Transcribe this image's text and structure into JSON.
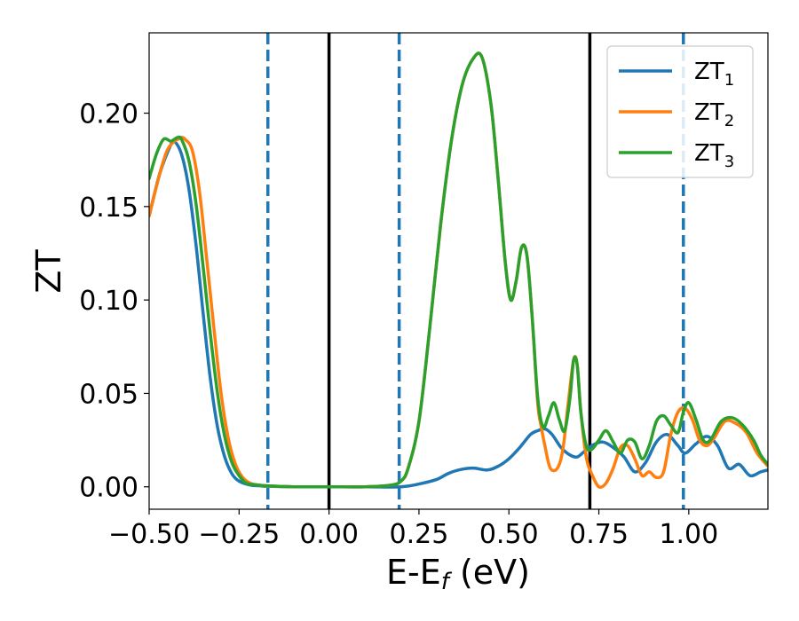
{
  "chart_data": {
    "type": "line",
    "xlabel": "E-E",
    "xlabel_sub": "f",
    "xlabel_unit": " (eV)",
    "ylabel": "ZT",
    "xlim": [
      -0.5,
      1.22
    ],
    "ylim": [
      -0.012,
      0.243
    ],
    "grid": false,
    "legend": {
      "position": "top-right",
      "entries": [
        {
          "label": "ZT",
          "sub": "1",
          "color": "#1f77b4"
        },
        {
          "label": "ZT",
          "sub": "2",
          "color": "#ff7f0e"
        },
        {
          "label": "ZT",
          "sub": "3",
          "color": "#2ca02c"
        }
      ]
    },
    "xticks": [
      {
        "value": -0.5,
        "label": "−0.50"
      },
      {
        "value": -0.25,
        "label": "−0.25"
      },
      {
        "value": 0.0,
        "label": "0.00"
      },
      {
        "value": 0.25,
        "label": "0.25"
      },
      {
        "value": 0.5,
        "label": "0.50"
      },
      {
        "value": 0.75,
        "label": "0.75"
      },
      {
        "value": 1.0,
        "label": "1.00"
      }
    ],
    "yticks": [
      {
        "value": 0.0,
        "label": "0.00"
      },
      {
        "value": 0.05,
        "label": "0.05"
      },
      {
        "value": 0.1,
        "label": "0.10"
      },
      {
        "value": 0.15,
        "label": "0.15"
      },
      {
        "value": 0.2,
        "label": "0.20"
      }
    ],
    "vlines": [
      {
        "x": -0.17,
        "style": "dashed",
        "color": "#1f77b4"
      },
      {
        "x": 0.0,
        "style": "solid",
        "color": "#000000"
      },
      {
        "x": 0.195,
        "style": "dashed",
        "color": "#1f77b4"
      },
      {
        "x": 0.725,
        "style": "solid",
        "color": "#000000"
      },
      {
        "x": 0.985,
        "style": "dashed",
        "color": "#1f77b4"
      }
    ],
    "series": [
      {
        "name": "ZT1",
        "color": "#1f77b4",
        "x": [
          -0.5,
          -0.47,
          -0.44,
          -0.43,
          -0.41,
          -0.39,
          -0.37,
          -0.35,
          -0.33,
          -0.31,
          -0.29,
          -0.27,
          -0.25,
          -0.22,
          -0.19,
          -0.17,
          -0.1,
          0.0,
          0.1,
          0.2,
          0.25,
          0.3,
          0.33,
          0.36,
          0.4,
          0.44,
          0.47,
          0.5,
          0.53,
          0.56,
          0.58,
          0.6,
          0.62,
          0.645,
          0.67,
          0.69,
          0.71,
          0.73,
          0.76,
          0.79,
          0.82,
          0.85,
          0.88,
          0.91,
          0.94,
          0.97,
          0.99,
          1.02,
          1.05,
          1.08,
          1.11,
          1.14,
          1.17,
          1.2,
          1.22
        ],
        "y": [
          0.145,
          0.168,
          0.183,
          0.185,
          0.178,
          0.16,
          0.13,
          0.093,
          0.058,
          0.032,
          0.016,
          0.007,
          0.003,
          0.001,
          0.0005,
          0.0003,
          0.0,
          0.0,
          0.0,
          0.0,
          0.0015,
          0.004,
          0.007,
          0.009,
          0.01,
          0.009,
          0.011,
          0.015,
          0.021,
          0.028,
          0.03,
          0.031,
          0.028,
          0.021,
          0.017,
          0.016,
          0.019,
          0.022,
          0.024,
          0.021,
          0.016,
          0.008,
          0.013,
          0.024,
          0.028,
          0.022,
          0.018,
          0.023,
          0.027,
          0.022,
          0.01,
          0.012,
          0.006,
          0.008,
          0.009
        ]
      },
      {
        "name": "ZT2",
        "color": "#ff7f0e",
        "x": [
          -0.5,
          -0.47,
          -0.45,
          -0.43,
          -0.42,
          -0.41,
          -0.4,
          -0.38,
          -0.36,
          -0.34,
          -0.32,
          -0.3,
          -0.28,
          -0.26,
          -0.24,
          -0.22,
          -0.2,
          -0.17,
          -0.1,
          0.0,
          0.1,
          0.17,
          0.2,
          0.22,
          0.25,
          0.28,
          0.31,
          0.34,
          0.37,
          0.4,
          0.425,
          0.45,
          0.47,
          0.49,
          0.505,
          0.52,
          0.535,
          0.55,
          0.565,
          0.58,
          0.59,
          0.6,
          0.615,
          0.635,
          0.65,
          0.665,
          0.68,
          0.69,
          0.7,
          0.715,
          0.73,
          0.75,
          0.77,
          0.79,
          0.81,
          0.83,
          0.85,
          0.87,
          0.89,
          0.91,
          0.93,
          0.95,
          0.97,
          0.99,
          1.01,
          1.03,
          1.05,
          1.07,
          1.1,
          1.13,
          1.16,
          1.19,
          1.22
        ],
        "y": [
          0.145,
          0.168,
          0.18,
          0.185,
          0.186,
          0.187,
          0.186,
          0.18,
          0.158,
          0.122,
          0.085,
          0.05,
          0.026,
          0.012,
          0.005,
          0.002,
          0.001,
          0.0005,
          0.0,
          0.0,
          0.0,
          0.0008,
          0.003,
          0.01,
          0.035,
          0.085,
          0.14,
          0.185,
          0.215,
          0.229,
          0.23,
          0.205,
          0.165,
          0.12,
          0.1,
          0.11,
          0.128,
          0.124,
          0.09,
          0.045,
          0.032,
          0.022,
          0.01,
          0.01,
          0.02,
          0.045,
          0.068,
          0.065,
          0.04,
          0.016,
          0.007,
          0.0,
          0.002,
          0.01,
          0.021,
          0.022,
          0.015,
          0.006,
          0.008,
          0.005,
          0.008,
          0.028,
          0.04,
          0.042,
          0.036,
          0.025,
          0.022,
          0.026,
          0.035,
          0.034,
          0.029,
          0.018,
          0.011
        ]
      },
      {
        "name": "ZT3",
        "color": "#2ca02c",
        "x": [
          -0.5,
          -0.48,
          -0.46,
          -0.44,
          -0.43,
          -0.42,
          -0.41,
          -0.39,
          -0.37,
          -0.35,
          -0.33,
          -0.31,
          -0.29,
          -0.27,
          -0.25,
          -0.23,
          -0.2,
          -0.17,
          -0.1,
          0.0,
          0.1,
          0.17,
          0.2,
          0.22,
          0.25,
          0.28,
          0.31,
          0.34,
          0.37,
          0.4,
          0.425,
          0.45,
          0.47,
          0.49,
          0.505,
          0.52,
          0.535,
          0.55,
          0.565,
          0.58,
          0.595,
          0.61,
          0.625,
          0.64,
          0.655,
          0.67,
          0.68,
          0.69,
          0.7,
          0.715,
          0.73,
          0.75,
          0.77,
          0.79,
          0.81,
          0.83,
          0.85,
          0.87,
          0.89,
          0.91,
          0.93,
          0.95,
          0.97,
          0.985,
          1.0,
          1.02,
          1.04,
          1.06,
          1.09,
          1.12,
          1.15,
          1.18,
          1.2,
          1.22
        ],
        "y": [
          0.165,
          0.178,
          0.186,
          0.185,
          0.186,
          0.187,
          0.186,
          0.175,
          0.152,
          0.118,
          0.082,
          0.05,
          0.027,
          0.013,
          0.006,
          0.002,
          0.001,
          0.0005,
          0.0,
          0.0,
          0.0,
          0.0008,
          0.003,
          0.01,
          0.035,
          0.085,
          0.14,
          0.185,
          0.215,
          0.229,
          0.23,
          0.205,
          0.165,
          0.12,
          0.1,
          0.11,
          0.128,
          0.124,
          0.09,
          0.048,
          0.032,
          0.038,
          0.045,
          0.036,
          0.03,
          0.048,
          0.068,
          0.065,
          0.04,
          0.022,
          0.02,
          0.025,
          0.03,
          0.024,
          0.018,
          0.025,
          0.024,
          0.015,
          0.022,
          0.035,
          0.038,
          0.033,
          0.029,
          0.04,
          0.045,
          0.036,
          0.025,
          0.025,
          0.035,
          0.037,
          0.033,
          0.025,
          0.017,
          0.012
        ]
      }
    ]
  }
}
